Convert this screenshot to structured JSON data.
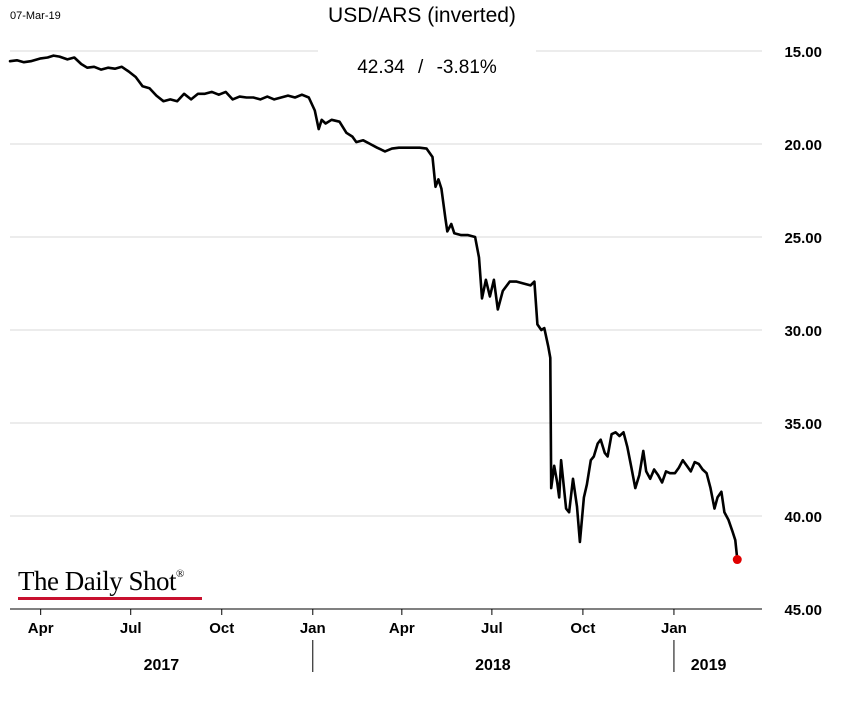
{
  "header": {
    "date": "07-Mar-19",
    "title": "USD/ARS (inverted)",
    "last_value": "42.34",
    "separator": "/",
    "change": "-3.81%"
  },
  "branding": {
    "logo_text": "The Daily Shot",
    "registered_mark": "®"
  },
  "colors": {
    "line": "#000000",
    "last_point": "#e00000",
    "grid": "#d9d9d9",
    "logo_underline": "#c8102e"
  },
  "chart_data": {
    "type": "line",
    "title": "USD/ARS (inverted)",
    "y_axis": {
      "inverted": true,
      "range": [
        15,
        45
      ],
      "ticks": [
        "15.00",
        "20.00",
        "25.00",
        "30.00",
        "35.00",
        "40.00",
        "45.00"
      ],
      "position": "right",
      "grid": true
    },
    "x_axis": {
      "range": [
        "2017-03-01",
        "2019-03-31"
      ],
      "month_ticks": [
        {
          "date": "2017-04-01",
          "label": "Apr"
        },
        {
          "date": "2017-07-01",
          "label": "Jul"
        },
        {
          "date": "2017-10-01",
          "label": "Oct"
        },
        {
          "date": "2018-01-01",
          "label": "Jan"
        },
        {
          "date": "2018-04-01",
          "label": "Apr"
        },
        {
          "date": "2018-07-01",
          "label": "Jul"
        },
        {
          "date": "2018-10-01",
          "label": "Oct"
        },
        {
          "date": "2019-01-01",
          "label": "Jan"
        }
      ],
      "year_labels": [
        {
          "label": "2017",
          "center": "2017-08-01"
        },
        {
          "label": "2018",
          "center": "2018-07-02"
        },
        {
          "label": "2019",
          "center": "2019-02-05"
        }
      ],
      "year_separators": [
        "2018-01-01",
        "2019-01-01"
      ]
    },
    "series": [
      {
        "last_value": 42.34,
        "points": [
          [
            "2017-03-01",
            15.55
          ],
          [
            "2017-03-08",
            15.5
          ],
          [
            "2017-03-15",
            15.6
          ],
          [
            "2017-03-22",
            15.55
          ],
          [
            "2017-04-01",
            15.4
          ],
          [
            "2017-04-08",
            15.35
          ],
          [
            "2017-04-14",
            15.25
          ],
          [
            "2017-04-20",
            15.3
          ],
          [
            "2017-04-28",
            15.45
          ],
          [
            "2017-05-05",
            15.35
          ],
          [
            "2017-05-12",
            15.7
          ],
          [
            "2017-05-18",
            15.9
          ],
          [
            "2017-05-25",
            15.85
          ],
          [
            "2017-06-01",
            16.0
          ],
          [
            "2017-06-08",
            15.9
          ],
          [
            "2017-06-15",
            15.95
          ],
          [
            "2017-06-22",
            15.85
          ],
          [
            "2017-06-29",
            16.1
          ],
          [
            "2017-07-06",
            16.4
          ],
          [
            "2017-07-13",
            16.9
          ],
          [
            "2017-07-20",
            17.0
          ],
          [
            "2017-07-27",
            17.4
          ],
          [
            "2017-08-03",
            17.7
          ],
          [
            "2017-08-10",
            17.6
          ],
          [
            "2017-08-17",
            17.7
          ],
          [
            "2017-08-24",
            17.3
          ],
          [
            "2017-08-31",
            17.6
          ],
          [
            "2017-09-07",
            17.3
          ],
          [
            "2017-09-14",
            17.3
          ],
          [
            "2017-09-21",
            17.2
          ],
          [
            "2017-09-28",
            17.35
          ],
          [
            "2017-10-05",
            17.2
          ],
          [
            "2017-10-12",
            17.6
          ],
          [
            "2017-10-19",
            17.45
          ],
          [
            "2017-10-26",
            17.5
          ],
          [
            "2017-11-02",
            17.5
          ],
          [
            "2017-11-09",
            17.6
          ],
          [
            "2017-11-16",
            17.45
          ],
          [
            "2017-11-23",
            17.6
          ],
          [
            "2017-11-30",
            17.5
          ],
          [
            "2017-12-07",
            17.4
          ],
          [
            "2017-12-14",
            17.5
          ],
          [
            "2017-12-21",
            17.35
          ],
          [
            "2017-12-28",
            17.5
          ],
          [
            "2018-01-03",
            18.2
          ],
          [
            "2018-01-07",
            19.2
          ],
          [
            "2018-01-10",
            18.7
          ],
          [
            "2018-01-14",
            18.9
          ],
          [
            "2018-01-20",
            18.7
          ],
          [
            "2018-01-28",
            18.8
          ],
          [
            "2018-02-04",
            19.4
          ],
          [
            "2018-02-10",
            19.6
          ],
          [
            "2018-02-14",
            19.9
          ],
          [
            "2018-02-21",
            19.8
          ],
          [
            "2018-02-28",
            20.0
          ],
          [
            "2018-03-07",
            20.2
          ],
          [
            "2018-03-15",
            20.4
          ],
          [
            "2018-03-22",
            20.25
          ],
          [
            "2018-03-29",
            20.2
          ],
          [
            "2018-04-05",
            20.2
          ],
          [
            "2018-04-12",
            20.2
          ],
          [
            "2018-04-19",
            20.2
          ],
          [
            "2018-04-26",
            20.25
          ],
          [
            "2018-05-02",
            20.7
          ],
          [
            "2018-05-05",
            22.3
          ],
          [
            "2018-05-08",
            21.9
          ],
          [
            "2018-05-11",
            22.4
          ],
          [
            "2018-05-15",
            24.0
          ],
          [
            "2018-05-17",
            24.7
          ],
          [
            "2018-05-21",
            24.3
          ],
          [
            "2018-05-24",
            24.8
          ],
          [
            "2018-05-31",
            24.9
          ],
          [
            "2018-06-07",
            24.9
          ],
          [
            "2018-06-14",
            25.0
          ],
          [
            "2018-06-18",
            26.1
          ],
          [
            "2018-06-21",
            28.3
          ],
          [
            "2018-06-25",
            27.3
          ],
          [
            "2018-06-29",
            28.2
          ],
          [
            "2018-07-03",
            27.3
          ],
          [
            "2018-07-07",
            28.9
          ],
          [
            "2018-07-12",
            27.9
          ],
          [
            "2018-07-19",
            27.4
          ],
          [
            "2018-07-26",
            27.4
          ],
          [
            "2018-08-02",
            27.5
          ],
          [
            "2018-08-09",
            27.6
          ],
          [
            "2018-08-13",
            27.4
          ],
          [
            "2018-08-16",
            29.7
          ],
          [
            "2018-08-20",
            30.0
          ],
          [
            "2018-08-23",
            29.9
          ],
          [
            "2018-08-27",
            30.9
          ],
          [
            "2018-08-29",
            31.5
          ],
          [
            "2018-08-30",
            38.5
          ],
          [
            "2018-09-02",
            37.3
          ],
          [
            "2018-09-05",
            38.2
          ],
          [
            "2018-09-07",
            39.0
          ],
          [
            "2018-09-09",
            37.0
          ],
          [
            "2018-09-14",
            39.6
          ],
          [
            "2018-09-17",
            39.8
          ],
          [
            "2018-09-21",
            38.0
          ],
          [
            "2018-09-25",
            39.5
          ],
          [
            "2018-09-28",
            41.4
          ],
          [
            "2018-10-02",
            39.0
          ],
          [
            "2018-10-05",
            38.3
          ],
          [
            "2018-10-09",
            37.0
          ],
          [
            "2018-10-12",
            36.8
          ],
          [
            "2018-10-16",
            36.1
          ],
          [
            "2018-10-19",
            35.9
          ],
          [
            "2018-10-23",
            36.6
          ],
          [
            "2018-10-26",
            36.8
          ],
          [
            "2018-10-30",
            35.6
          ],
          [
            "2018-11-03",
            35.5
          ],
          [
            "2018-11-07",
            35.7
          ],
          [
            "2018-11-11",
            35.5
          ],
          [
            "2018-11-15",
            36.3
          ],
          [
            "2018-11-19",
            37.4
          ],
          [
            "2018-11-23",
            38.5
          ],
          [
            "2018-11-27",
            37.8
          ],
          [
            "2018-12-01",
            36.5
          ],
          [
            "2018-12-04",
            37.6
          ],
          [
            "2018-12-08",
            38.0
          ],
          [
            "2018-12-12",
            37.5
          ],
          [
            "2018-12-16",
            37.8
          ],
          [
            "2018-12-20",
            38.2
          ],
          [
            "2018-12-24",
            37.6
          ],
          [
            "2018-12-28",
            37.7
          ],
          [
            "2019-01-02",
            37.7
          ],
          [
            "2019-01-06",
            37.4
          ],
          [
            "2019-01-10",
            37.0
          ],
          [
            "2019-01-14",
            37.3
          ],
          [
            "2019-01-18",
            37.6
          ],
          [
            "2019-01-22",
            37.1
          ],
          [
            "2019-01-26",
            37.2
          ],
          [
            "2019-01-30",
            37.5
          ],
          [
            "2019-02-03",
            37.7
          ],
          [
            "2019-02-07",
            38.5
          ],
          [
            "2019-02-11",
            39.6
          ],
          [
            "2019-02-14",
            39.0
          ],
          [
            "2019-02-18",
            38.7
          ],
          [
            "2019-02-21",
            39.8
          ],
          [
            "2019-02-25",
            40.2
          ],
          [
            "2019-03-01",
            40.8
          ],
          [
            "2019-03-04",
            41.3
          ],
          [
            "2019-03-06",
            42.34
          ]
        ]
      }
    ]
  }
}
